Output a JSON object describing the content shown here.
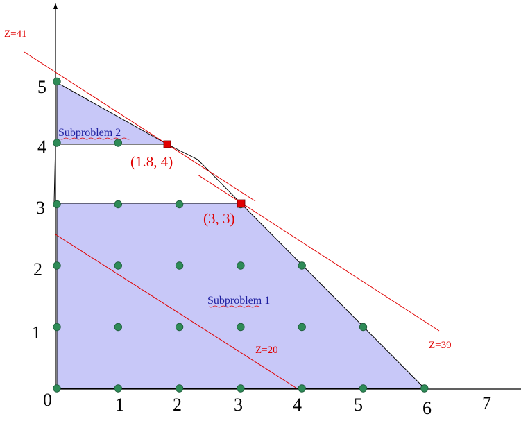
{
  "diagram": {
    "x_ticks": [
      "0",
      "1",
      "2",
      "3",
      "4",
      "5",
      "6",
      "7"
    ],
    "y_ticks": [
      "1",
      "2",
      "3",
      "4",
      "5"
    ],
    "objective_labels": {
      "z41": "Z=41",
      "z39": "Z=39",
      "z20": "Z=20"
    },
    "subproblem_labels": {
      "sub1": "Subproblem 1",
      "sub2": "Subproblem 2"
    },
    "points": {
      "p1": "(1.8, 4)",
      "p2": "(3, 3)"
    },
    "integer_points": [
      [
        0,
        0
      ],
      [
        1,
        0
      ],
      [
        2,
        0
      ],
      [
        3,
        0
      ],
      [
        4,
        0
      ],
      [
        5,
        0
      ],
      [
        6,
        0
      ],
      [
        0,
        1
      ],
      [
        1,
        1
      ],
      [
        2,
        1
      ],
      [
        3,
        1
      ],
      [
        4,
        1
      ],
      [
        5,
        1
      ],
      [
        0,
        2
      ],
      [
        1,
        2
      ],
      [
        2,
        2
      ],
      [
        3,
        2
      ],
      [
        4,
        2
      ],
      [
        0,
        3
      ],
      [
        1,
        3
      ],
      [
        2,
        3
      ],
      [
        3,
        3
      ],
      [
        0,
        4
      ],
      [
        1,
        4
      ],
      [
        0,
        5
      ]
    ],
    "colors": {
      "region_fill": "#c8c8f8",
      "integer_point": "#2e8b57",
      "optimum_point": "#e00000",
      "objective_line": "#e00000",
      "subproblem_text": "#1f1fa0"
    }
  }
}
